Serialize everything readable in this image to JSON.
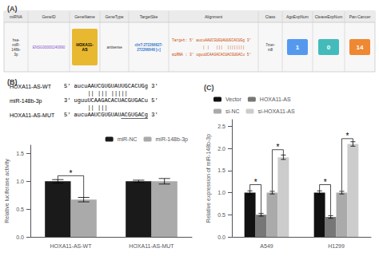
{
  "chart_data": [
    {
      "type": "table",
      "title": "(A)",
      "headers": [
        "miRNA",
        "GeneID",
        "GeneName",
        "GeneType",
        "TargetSite",
        "Alignment",
        "Class",
        "AgoExpNum",
        "CleaveExpNum",
        "Pan-Cancer"
      ],
      "rows": [
        [
          "hsa-\nmiR-\n148b-\n3p",
          "ENSG00000240990",
          "HOXA11-\nAS",
          "antisense",
          "chr7:272266627-\n272266648 [+]",
          "Target: 5' aucuAAUCGUGUAUUGCACUGg 3'\n              | |   |||  ||||||||\nmiRNA : 3' uguuUCAAGACACUACGUGACu 5'",
          "7mer-\nm8",
          "1",
          "0",
          "14"
        ]
      ],
      "colors": [
        null,
        "#8855cc",
        "#e8b830",
        null,
        "#3377cc",
        "#cc4400",
        null,
        "#5599ee",
        "#44bbbb",
        "#ee8833"
      ]
    },
    {
      "type": "text",
      "title": "(B)",
      "lines": [
        {
          "label": "HOXA11-AS-WT",
          "text": "5' aucuAAUCGUGUAUUGCACUGg 3'"
        },
        {
          "text": "       || ||| |||||"
        },
        {
          "label": "miR-148b-3p",
          "text": "3' uguuUCAAGACACUACGUGACu 5'"
        },
        {
          "text": "       || |||"
        },
        {
          "label": "HOXA11-AS-MUT",
          "text": "5' aucuAAUCGUGUAUACGUGACg 3'",
          "underlined": "ACGUGACg"
        }
      ]
    },
    {
      "type": "bar",
      "categories": [
        "HOXA11-AS-WT",
        "HOXA11-AS-MUT"
      ],
      "series": [
        {
          "name": "miR-NC",
          "color": "#1a1a1a",
          "values": [
            1.0,
            1.0
          ],
          "errors": [
            0.03,
            0.02
          ]
        },
        {
          "name": "miR-148b-3p",
          "color": "#aaaaaa",
          "values": [
            0.67,
            1.0
          ],
          "errors": [
            0.04,
            0.05
          ]
        }
      ],
      "ylabel": "Relative luciferase activity",
      "ylim": [
        0,
        1.65
      ],
      "yticks": [
        {
          "value": 0,
          "label": "0.0"
        },
        0.5,
        {
          "value": 1,
          "label": "1.0"
        },
        1.5
      ],
      "grid": false,
      "legend": "upper right",
      "annotations": [
        {
          "text": "*",
          "category": "HOXA11-AS-WT",
          "series": [
            "miR-NC",
            "miR-148b-3p"
          ],
          "y": 1.1,
          "y_start": [
            1.03,
            0.71
          ]
        }
      ]
    },
    {
      "type": "bar",
      "title": "(C)",
      "categories": [
        "A549",
        "H1299"
      ],
      "series": [
        {
          "name": "Vector",
          "color": "#111111",
          "values": [
            1.0,
            1.0
          ],
          "errors": [
            0.04,
            0.04
          ]
        },
        {
          "name": "HOXA11-AS",
          "color": "#777777",
          "values": [
            0.5,
            0.45
          ],
          "errors": [
            0.03,
            0.03
          ]
        },
        {
          "name": "si-NC",
          "color": "#aaaaaa",
          "values": [
            1.0,
            1.0
          ],
          "errors": [
            0.03,
            0.03
          ]
        },
        {
          "name": "si-HOXA11-AS",
          "color": "#cccccc",
          "values": [
            1.8,
            2.1
          ],
          "errors": [
            0.05,
            0.05
          ]
        }
      ],
      "ylabel": "Relative expression of miR-148b-3p",
      "ylim": [
        0,
        2.65
      ],
      "yticks": [
        {
          "value": 0,
          "label": "0.0"
        },
        0.5,
        {
          "value": 1,
          "label": "1.0"
        },
        1.5,
        {
          "value": 2,
          "label": "2.0"
        },
        2.5
      ],
      "grid": false,
      "legend": "upper left",
      "annotations": [
        {
          "text": "*",
          "category": "A549",
          "series": [
            "Vector",
            "HOXA11-AS"
          ],
          "y": 1.18,
          "y_start": [
            1.04,
            0.54
          ]
        },
        {
          "text": "*",
          "category": "A549",
          "series": [
            "si-NC",
            "si-HOXA11-AS"
          ],
          "y": 1.97,
          "y_start": [
            1.04,
            1.85
          ]
        },
        {
          "text": "*",
          "category": "H1299",
          "series": [
            "Vector",
            "HOXA11-AS"
          ],
          "y": 1.18,
          "y_start": [
            1.04,
            0.49
          ]
        },
        {
          "text": "*",
          "category": "H1299",
          "series": [
            "si-NC",
            "si-HOXA11-AS"
          ],
          "y": 2.22,
          "y_start": [
            1.04,
            2.15
          ]
        }
      ]
    }
  ]
}
